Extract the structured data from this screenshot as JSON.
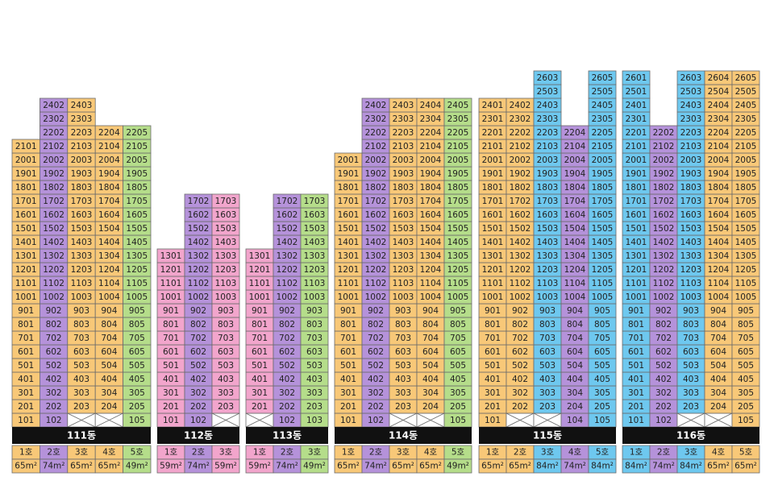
{
  "buildings": [
    {
      "name": "111동",
      "columns": [
        {
          "unit": "1호",
          "area": "65m²",
          "color": "#f8c878",
          "units": [
            "101",
            "201",
            "301",
            "401",
            "501",
            "601",
            "701",
            "801",
            "901",
            "1001",
            "1101",
            "1201",
            "1301",
            "1401",
            "1501",
            "1601",
            "1701",
            "1801",
            "1901",
            "2001",
            "2101"
          ]
        },
        {
          "unit": "2호",
          "area": "74m²",
          "color": "#b592da",
          "units": [
            "102",
            "202",
            "302",
            "402",
            "502",
            "602",
            "702",
            "802",
            "902",
            "1002",
            "1102",
            "1202",
            "1302",
            "1402",
            "1502",
            "1602",
            "1702",
            "1802",
            "1902",
            "2002",
            "2102",
            "2202",
            "2302",
            "2402"
          ]
        },
        {
          "unit": "3호",
          "area": "65m²",
          "color": "#f8c878",
          "units": [
            null,
            "203",
            "303",
            "403",
            "503",
            "603",
            "703",
            "803",
            "903",
            "1003",
            "1103",
            "1203",
            "1303",
            "1403",
            "1503",
            "1603",
            "1703",
            "1803",
            "1903",
            "2003",
            "2103",
            "2203",
            "2303",
            "2403"
          ]
        },
        {
          "unit": "4호",
          "area": "65m²",
          "color": "#f8c878",
          "units": [
            null,
            "204",
            "304",
            "404",
            "504",
            "604",
            "704",
            "804",
            "904",
            "1004",
            "1104",
            "1204",
            "1304",
            "1404",
            "1504",
            "1604",
            "1704",
            "1804",
            "1904",
            "2004",
            "2104",
            "2204"
          ]
        },
        {
          "unit": "5호",
          "area": "49m²",
          "color": "#b5dd8a",
          "units": [
            "105",
            "205",
            "305",
            "405",
            "505",
            "605",
            "705",
            "805",
            "905",
            "1005",
            "1105",
            "1205",
            "1305",
            "1405",
            "1505",
            "1605",
            "1705",
            "1805",
            "1905",
            "2005",
            "2105",
            "2205"
          ]
        }
      ]
    },
    {
      "name": "112동",
      "columns": [
        {
          "unit": "1호",
          "area": "59m²",
          "color": "#f2a5cc",
          "units": [
            "101",
            "201",
            "301",
            "401",
            "501",
            "601",
            "701",
            "801",
            "901",
            "1001",
            "1101",
            "1201",
            "1301"
          ]
        },
        {
          "unit": "2호",
          "area": "74m²",
          "color": "#b592da",
          "units": [
            "102",
            "202",
            "302",
            "402",
            "502",
            "602",
            "702",
            "802",
            "902",
            "1002",
            "1102",
            "1202",
            "1302",
            "1402",
            "1502",
            "1602",
            "1702"
          ]
        },
        {
          "unit": "3호",
          "area": "59m²",
          "color": "#f2a5cc",
          "units": [
            null,
            "203",
            "303",
            "403",
            "503",
            "603",
            "703",
            "803",
            "903",
            "1003",
            "1103",
            "1203",
            "1303",
            "1403",
            "1503",
            "1603",
            "1703"
          ]
        }
      ]
    },
    {
      "name": "113동",
      "columns": [
        {
          "unit": "1호",
          "area": "59m²",
          "color": "#f2a5cc",
          "units": [
            null,
            "201",
            "301",
            "401",
            "501",
            "601",
            "701",
            "801",
            "901",
            "1001",
            "1101",
            "1201",
            "1301"
          ]
        },
        {
          "unit": "2호",
          "area": "74m²",
          "color": "#b592da",
          "units": [
            "102",
            "202",
            "302",
            "402",
            "502",
            "602",
            "702",
            "802",
            "902",
            "1002",
            "1102",
            "1202",
            "1302",
            "1402",
            "1502",
            "1602",
            "1702"
          ]
        },
        {
          "unit": "3호",
          "area": "49m²",
          "color": "#b5dd8a",
          "units": [
            "103",
            "203",
            "303",
            "403",
            "503",
            "603",
            "703",
            "803",
            "903",
            "1003",
            "1103",
            "1203",
            "1303",
            "1403",
            "1503",
            "1603",
            "1703"
          ]
        }
      ]
    },
    {
      "name": "114동",
      "columns": [
        {
          "unit": "1호",
          "area": "65m²",
          "color": "#f8c878",
          "units": [
            "101",
            "201",
            "301",
            "401",
            "501",
            "601",
            "701",
            "801",
            "901",
            "1001",
            "1101",
            "1201",
            "1301",
            "1401",
            "1501",
            "1601",
            "1701",
            "1801",
            "1901",
            "2001"
          ]
        },
        {
          "unit": "2호",
          "area": "74m²",
          "color": "#b592da",
          "units": [
            "102",
            "202",
            "302",
            "402",
            "502",
            "602",
            "702",
            "802",
            "902",
            "1002",
            "1102",
            "1202",
            "1302",
            "1402",
            "1502",
            "1602",
            "1702",
            "1802",
            "1902",
            "2002",
            "2102",
            "2202",
            "2302",
            "2402"
          ]
        },
        {
          "unit": "3호",
          "area": "65m²",
          "color": "#f8c878",
          "units": [
            null,
            "203",
            "303",
            "403",
            "503",
            "603",
            "703",
            "803",
            "903",
            "1003",
            "1103",
            "1203",
            "1303",
            "1403",
            "1503",
            "1603",
            "1703",
            "1803",
            "1903",
            "2003",
            "2103",
            "2203",
            "2303",
            "2403"
          ]
        },
        {
          "unit": "4호",
          "area": "65m²",
          "color": "#f8c878",
          "units": [
            null,
            "204",
            "304",
            "404",
            "504",
            "604",
            "704",
            "804",
            "904",
            "1004",
            "1104",
            "1204",
            "1304",
            "1404",
            "1504",
            "1604",
            "1704",
            "1804",
            "1904",
            "2004",
            "2104",
            "2204",
            "2304",
            "2404"
          ]
        },
        {
          "unit": "5호",
          "area": "49m²",
          "color": "#b5dd8a",
          "units": [
            "105",
            "205",
            "305",
            "405",
            "505",
            "605",
            "705",
            "805",
            "905",
            "1005",
            "1105",
            "1205",
            "1305",
            "1405",
            "1505",
            "1605",
            "1705",
            "1805",
            "1905",
            "2005",
            "2105",
            "2205",
            "2305",
            "2405"
          ]
        }
      ]
    },
    {
      "name": "115동",
      "columns": [
        {
          "unit": "1호",
          "area": "65m²",
          "color": "#f8c878",
          "units": [
            "101",
            "201",
            "301",
            "401",
            "501",
            "601",
            "701",
            "801",
            "901",
            "1001",
            "1101",
            "1201",
            "1301",
            "1401",
            "1501",
            "1601",
            "1701",
            "1801",
            "1901",
            "2001",
            "2101",
            "2201",
            "2301",
            "2401"
          ]
        },
        {
          "unit": "2호",
          "area": "65m²",
          "color": "#f8c878",
          "units": [
            null,
            "202",
            "302",
            "402",
            "502",
            "602",
            "702",
            "802",
            "902",
            "1002",
            "1102",
            "1202",
            "1302",
            "1402",
            "1502",
            "1602",
            "1702",
            "1802",
            "1902",
            "2002",
            "2102",
            "2202",
            "2302",
            "2402"
          ]
        },
        {
          "unit": "3호",
          "area": "84m²",
          "color": "#6ec8ef",
          "units": [
            null,
            "203",
            "303",
            "403",
            "503",
            "603",
            "703",
            "803",
            "903",
            "1003",
            "1103",
            "1203",
            "1303",
            "1403",
            "1503",
            "1603",
            "1703",
            "1803",
            "1903",
            "2003",
            "2103",
            "2203",
            "2303",
            "2403",
            "2503",
            "2603"
          ]
        },
        {
          "unit": "4호",
          "area": "74m²",
          "color": "#b592da",
          "units": [
            "104",
            "204",
            "304",
            "404",
            "504",
            "604",
            "704",
            "804",
            "904",
            "1004",
            "1104",
            "1204",
            "1304",
            "1404",
            "1504",
            "1604",
            "1704",
            "1804",
            "1904",
            "2004",
            "2104",
            "2204"
          ]
        },
        {
          "unit": "5호",
          "area": "84m²",
          "color": "#6ec8ef",
          "units": [
            "105",
            "205",
            "305",
            "405",
            "505",
            "605",
            "705",
            "805",
            "905",
            "1005",
            "1105",
            "1205",
            "1305",
            "1405",
            "1505",
            "1605",
            "1705",
            "1805",
            "1905",
            "2005",
            "2105",
            "2205",
            "2305",
            "2405",
            "2505",
            "2605"
          ]
        }
      ]
    },
    {
      "name": "116동",
      "columns": [
        {
          "unit": "1호",
          "area": "84m²",
          "color": "#6ec8ef",
          "units": [
            "101",
            "201",
            "301",
            "401",
            "501",
            "601",
            "701",
            "801",
            "901",
            "1001",
            "1101",
            "1201",
            "1301",
            "1401",
            "1501",
            "1601",
            "1701",
            "1801",
            "1901",
            "2001",
            "2101",
            "2201",
            "2301",
            "2401",
            "2501",
            "2601"
          ]
        },
        {
          "unit": "2호",
          "area": "74m²",
          "color": "#b592da",
          "units": [
            "102",
            "202",
            "302",
            "402",
            "502",
            "602",
            "702",
            "802",
            "902",
            "1002",
            "1102",
            "1202",
            "1302",
            "1402",
            "1502",
            "1602",
            "1702",
            "1802",
            "1902",
            "2002",
            "2102",
            "2202"
          ]
        },
        {
          "unit": "3호",
          "area": "84m²",
          "color": "#6ec8ef",
          "units": [
            null,
            "203",
            "303",
            "403",
            "503",
            "603",
            "703",
            "803",
            "903",
            "1003",
            "1103",
            "1203",
            "1303",
            "1403",
            "1503",
            "1603",
            "1703",
            "1803",
            "1903",
            "2003",
            "2103",
            "2203",
            "2303",
            "2403",
            "2503",
            "2603"
          ]
        },
        {
          "unit": "4호",
          "area": "65m²",
          "color": "#f8c878",
          "units": [
            null,
            "204",
            "304",
            "404",
            "504",
            "604",
            "704",
            "804",
            "904",
            "1004",
            "1104",
            "1204",
            "1304",
            "1404",
            "1504",
            "1604",
            "1704",
            "1804",
            "1904",
            "2004",
            "2104",
            "2204",
            "2304",
            "2404",
            "2504",
            "2604"
          ]
        },
        {
          "unit": "5호",
          "area": "65m²",
          "color": "#f8c878",
          "units": [
            "105",
            "205",
            "305",
            "405",
            "505",
            "605",
            "705",
            "805",
            "905",
            "1005",
            "1105",
            "1205",
            "1305",
            "1405",
            "1505",
            "1605",
            "1705",
            "1805",
            "1905",
            "2005",
            "2105",
            "2205",
            "2305",
            "2405",
            "2505",
            "2605"
          ]
        }
      ]
    }
  ]
}
